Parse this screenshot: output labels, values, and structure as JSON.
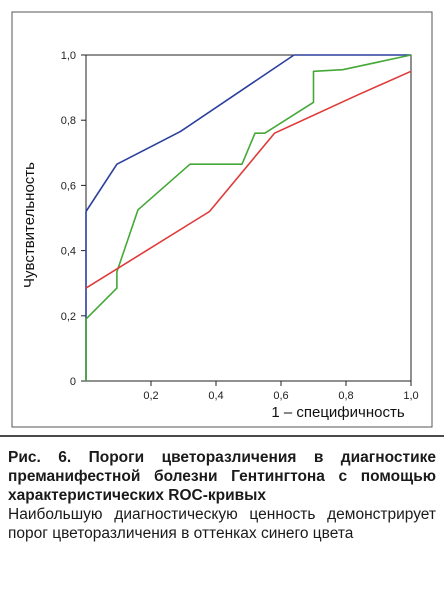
{
  "chart_data": {
    "type": "line",
    "title": "",
    "xlabel": "1 – специфичность",
    "ylabel": "Чувствительность",
    "xlim": [
      0,
      1
    ],
    "ylim": [
      0,
      1
    ],
    "x_ticks": [
      0.2,
      0.4,
      0.6,
      0.8,
      1.0
    ],
    "x_tick_labels": [
      "0,2",
      "0,4",
      "0,6",
      "0,8",
      "1,0"
    ],
    "y_ticks": [
      0,
      0.2,
      0.4,
      0.6,
      0.8,
      1.0
    ],
    "y_tick_labels": [
      "0",
      "0,2",
      "0,4",
      "0,6",
      "0,8",
      "1,0"
    ],
    "grid": false,
    "legend": "none",
    "series": [
      {
        "color": "#2b3f9e",
        "points": [
          [
            0,
            0
          ],
          [
            0,
            0.52
          ],
          [
            0.095,
            0.665
          ],
          [
            0.29,
            0.765
          ],
          [
            0.64,
            1.0
          ],
          [
            1.0,
            1.0
          ]
        ]
      },
      {
        "color": "#45a838",
        "points": [
          [
            0,
            0
          ],
          [
            0,
            0.19
          ],
          [
            0.095,
            0.285
          ],
          [
            0.095,
            0.335
          ],
          [
            0.16,
            0.525
          ],
          [
            0.32,
            0.665
          ],
          [
            0.48,
            0.665
          ],
          [
            0.52,
            0.76
          ],
          [
            0.55,
            0.76
          ],
          [
            0.7,
            0.855
          ],
          [
            0.7,
            0.95
          ],
          [
            0.79,
            0.955
          ],
          [
            1.0,
            1.0
          ]
        ]
      },
      {
        "color": "#e03a3a",
        "points": [
          [
            0,
            0.285
          ],
          [
            0.38,
            0.52
          ],
          [
            0.58,
            0.76
          ],
          [
            0.83,
            0.875
          ],
          [
            1.0,
            0.95
          ]
        ]
      }
    ]
  },
  "caption": {
    "title": "Рис. 6. Пороги цветоразличения в диагностике преманифестной болезни Гентингтона с помощью характеристических ROC-кривых",
    "description": "Наибольшую диагностическую ценность демонстрирует порог цветоразличения в оттенках синего цвета"
  }
}
